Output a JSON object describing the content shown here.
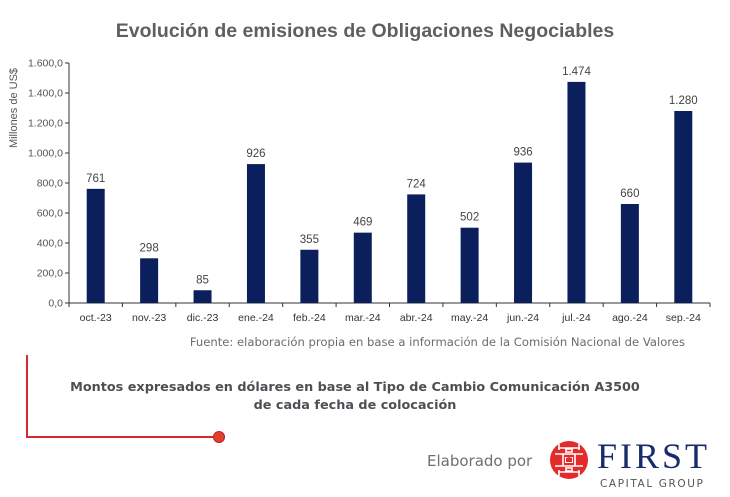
{
  "chart_data": {
    "type": "bar",
    "title": "Evolución de emisiones de Obligaciones Negociables",
    "xlabel": "",
    "ylabel": "Millones de US$",
    "categories": [
      "oct.-23",
      "nov.-23",
      "dic.-23",
      "ene.-24",
      "feb.-24",
      "mar.-24",
      "abr.-24",
      "may.-24",
      "jun.-24",
      "jul.-24",
      "ago.-24",
      "sep.-24"
    ],
    "values": [
      761,
      298,
      85,
      926,
      355,
      469,
      724,
      502,
      936,
      1474,
      660,
      1280
    ],
    "data_labels": [
      "761",
      "298",
      "85",
      "926",
      "355",
      "469",
      "724",
      "502",
      "936",
      "1.474",
      "660",
      "1.280"
    ],
    "ylim": [
      0,
      1600
    ],
    "yticks": [
      0,
      200,
      400,
      600,
      800,
      1000,
      1200,
      1400,
      1600
    ],
    "ytick_labels": [
      "0,0",
      "200,0",
      "400,0",
      "600,0",
      "800,0",
      "1.000,0",
      "1.200,0",
      "1.400,0",
      "1.600,0"
    ],
    "grid": false,
    "legend": "none",
    "bar_color": "#0b1f5c"
  },
  "footer": {
    "source": "Fuente: elaboración propia en base a información de la Comisión Nacional de Valores",
    "note_line1": "Montos expresados en dólares en base al Tipo de Cambio Comunicación A3500",
    "note_line2": "de cada fecha de colocación",
    "credit": "Elaborado por",
    "brand_name": "FIRST",
    "brand_sub": "CAPITAL GROUP",
    "brand_color": "#1a2b6b",
    "accent_color": "#d32b2b"
  }
}
